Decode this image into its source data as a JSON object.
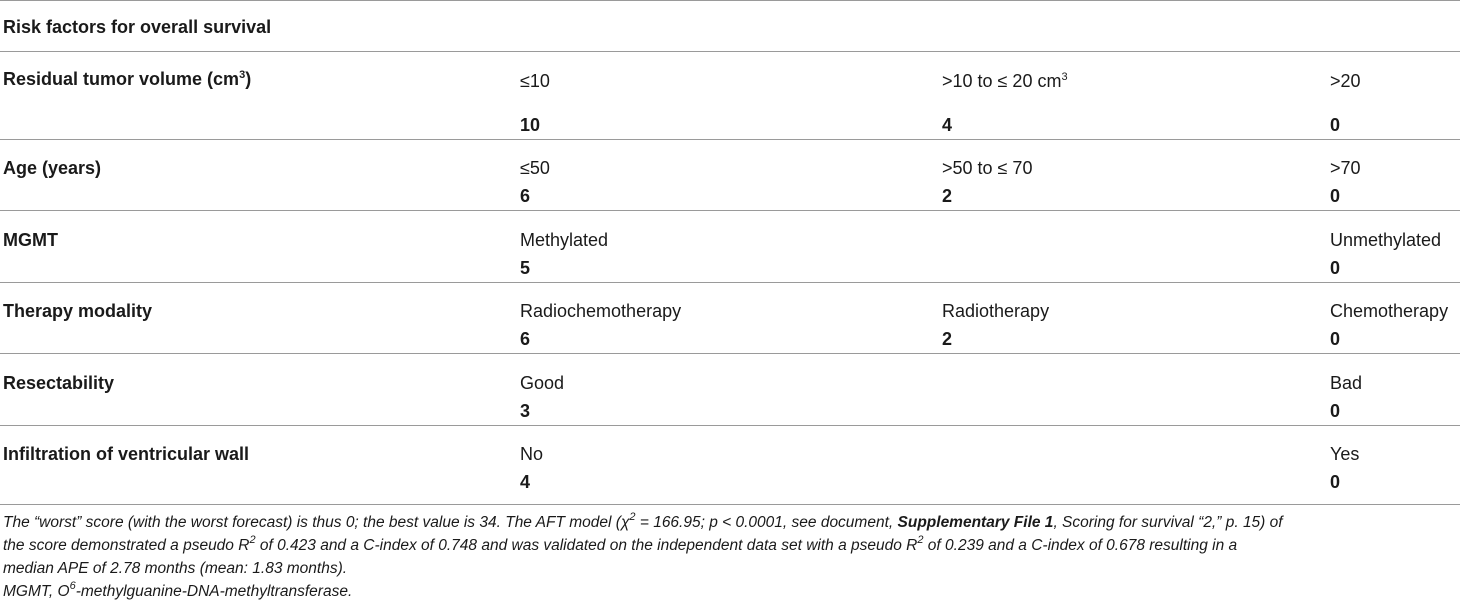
{
  "table": {
    "header": "Risk factors for overall survival",
    "rows": [
      {
        "factor": "Residual tumor volume (cm",
        "factor_sup": "3",
        "factor_end": ")",
        "c1_label": "≤10",
        "c2_label": ">10 to ≤ 20 cm",
        "c2_sup": "3",
        "c3_label": ">20",
        "c1_score": "10",
        "c2_score": "4",
        "c3_score": "0"
      },
      {
        "factor": "Age (years)",
        "c1_label": "≤50",
        "c2_label": ">50 to ≤ 70",
        "c3_label": ">70",
        "c1_score": "6",
        "c2_score": "2",
        "c3_score": "0"
      },
      {
        "factor": "MGMT",
        "c1_label": "Methylated",
        "c3_label": "Unmethylated",
        "c1_score": "5",
        "c3_score": "0"
      },
      {
        "factor": "Therapy modality",
        "c1_label": "Radiochemotherapy",
        "c2_label": "Radiotherapy",
        "c3_label": "Chemotherapy",
        "c1_score": "6",
        "c2_score": "2",
        "c3_score": "0"
      },
      {
        "factor": "Resectability",
        "c1_label": "Good",
        "c3_label": "Bad",
        "c1_score": "3",
        "c3_score": "0"
      },
      {
        "factor": "Infiltration of ventricular wall",
        "c1_label": "No",
        "c3_label": "Yes",
        "c1_score": "4",
        "c3_score": "0"
      }
    ]
  },
  "footnote": {
    "line1_a": "The “worst” score (with the worst forecast) is thus 0; the best value is 34. The AFT model (",
    "chi": "χ",
    "chi_sup": "2",
    "line1_b": " = 166.95; p < 0.0001, see document, ",
    "supp": "Supplementary File 1",
    "line1_c": ", Scoring for survival “2,” p. 15) of",
    "line2_a": "the score demonstrated a pseudo R",
    "r_sup": "2",
    "line2_b": " of 0.423 and a C-index of 0.748 and was validated on the independent data set with a pseudo R",
    "line2_c": " of 0.239 and a C-index of 0.678 resulting in a",
    "line3": "median APE of 2.78 months (mean: 1.83 months).",
    "abbr_a": "MGMT, O",
    "abbr_sup": "6",
    "abbr_b": "-methylguanine-DNA-methyltransferase."
  }
}
